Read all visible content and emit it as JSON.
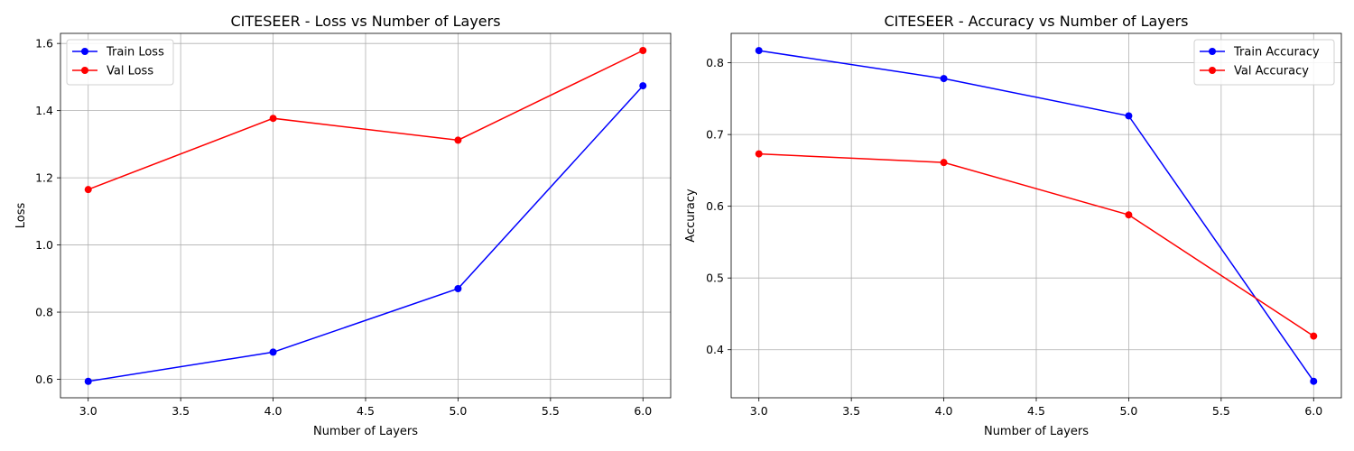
{
  "chart_data": [
    {
      "type": "line",
      "title": "CITESEER - Loss vs Number of Layers",
      "xlabel": "Number of Layers",
      "ylabel": "Loss",
      "x": [
        3.0,
        4.0,
        5.0,
        6.0
      ],
      "xlim": [
        2.85,
        6.15
      ],
      "ylim": [
        0.545,
        1.63
      ],
      "xticks": [
        "3.0",
        "3.5",
        "4.0",
        "4.5",
        "5.0",
        "5.5",
        "6.0"
      ],
      "yticks": [
        "0.6",
        "0.8",
        "1.0",
        "1.2",
        "1.4",
        "1.6"
      ],
      "grid": true,
      "legend_position": "top-left",
      "series": [
        {
          "name": "Train Loss",
          "color": "#0000ff",
          "values": [
            0.594,
            0.681,
            0.87,
            1.474
          ]
        },
        {
          "name": "Val Loss",
          "color": "#ff0000",
          "values": [
            1.165,
            1.377,
            1.312,
            1.579
          ]
        }
      ]
    },
    {
      "type": "line",
      "title": "CITESEER - Accuracy vs Number of Layers",
      "xlabel": "Number of Layers",
      "ylabel": "Accuracy",
      "x": [
        3.0,
        4.0,
        5.0,
        6.0
      ],
      "xlim": [
        2.85,
        6.15
      ],
      "ylim": [
        0.333,
        0.841
      ],
      "xticks": [
        "3.0",
        "3.5",
        "4.0",
        "4.5",
        "5.0",
        "5.5",
        "6.0"
      ],
      "yticks": [
        "0.4",
        "0.5",
        "0.6",
        "0.7",
        "0.8"
      ],
      "grid": true,
      "legend_position": "top-right",
      "series": [
        {
          "name": "Train Accuracy",
          "color": "#0000ff",
          "values": [
            0.817,
            0.778,
            0.726,
            0.356
          ]
        },
        {
          "name": "Val Accuracy",
          "color": "#ff0000",
          "values": [
            0.673,
            0.661,
            0.588,
            0.419
          ]
        }
      ]
    }
  ]
}
